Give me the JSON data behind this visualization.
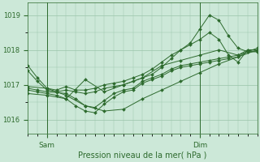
{
  "bg_color": "#cce8d8",
  "grid_color": "#99c4aa",
  "line_color": "#2d6a2d",
  "marker_color": "#2d6a2d",
  "title": "Pression niveau de la mer( hPa )",
  "ylim": [
    1015.6,
    1019.35
  ],
  "yticks": [
    1016,
    1017,
    1018,
    1019
  ],
  "series": [
    {
      "x": [
        0,
        1,
        2,
        3,
        4,
        5,
        6,
        7,
        8,
        9,
        10,
        11,
        12,
        13,
        14,
        15,
        16,
        17,
        18,
        19,
        20,
        21,
        22,
        23,
        24
      ],
      "y": [
        1016.9,
        1016.85,
        1016.8,
        1016.78,
        1016.75,
        1016.6,
        1016.4,
        1016.35,
        1016.55,
        1016.75,
        1016.85,
        1016.9,
        1017.1,
        1017.2,
        1017.3,
        1017.45,
        1017.55,
        1017.6,
        1017.65,
        1017.7,
        1017.75,
        1017.8,
        1017.85,
        1018.0,
        1018.0
      ]
    },
    {
      "x": [
        0,
        1,
        2,
        3,
        4,
        5,
        6,
        7,
        8,
        9,
        10,
        11,
        12,
        13,
        14,
        15,
        16,
        17,
        18,
        19,
        20,
        21,
        22,
        23,
        24
      ],
      "y": [
        1016.85,
        1016.8,
        1016.75,
        1016.7,
        1016.6,
        1016.4,
        1016.25,
        1016.2,
        1016.45,
        1016.65,
        1016.8,
        1016.85,
        1017.05,
        1017.15,
        1017.25,
        1017.4,
        1017.5,
        1017.55,
        1017.6,
        1017.65,
        1017.7,
        1017.75,
        1017.8,
        1017.95,
        1017.95
      ]
    },
    {
      "x": [
        0,
        2,
        4,
        6,
        8,
        10,
        12,
        14,
        16,
        18,
        20,
        22,
        24
      ],
      "y": [
        1016.75,
        1016.7,
        1016.6,
        1017.15,
        1016.8,
        1017.0,
        1017.2,
        1017.55,
        1017.7,
        1017.85,
        1018.0,
        1017.85,
        1018.05
      ]
    },
    {
      "x": [
        0,
        2,
        4,
        6,
        8,
        10,
        12,
        14,
        16,
        18,
        20,
        22,
        24
      ],
      "y": [
        1016.95,
        1016.9,
        1016.7,
        1016.4,
        1016.25,
        1016.3,
        1016.6,
        1016.85,
        1017.1,
        1017.35,
        1017.6,
        1017.8,
        1018.0
      ]
    },
    {
      "x": [
        0,
        1,
        2,
        3,
        4,
        5,
        6,
        7,
        8,
        9,
        10,
        11,
        12,
        13,
        14,
        15,
        16,
        17,
        18,
        19,
        20,
        21,
        22,
        23,
        24
      ],
      "y": [
        1017.55,
        1017.2,
        1016.9,
        1016.85,
        1016.95,
        1016.85,
        1016.85,
        1016.9,
        1017.0,
        1017.05,
        1017.1,
        1017.2,
        1017.3,
        1017.45,
        1017.65,
        1017.85,
        1018.0,
        1018.2,
        1018.6,
        1019.0,
        1018.85,
        1018.4,
        1018.05,
        1017.95,
        1017.95
      ]
    },
    {
      "x": [
        0,
        1,
        2,
        3,
        4,
        5,
        6,
        7,
        8,
        9,
        10,
        11,
        12,
        13,
        14,
        15,
        16,
        17,
        18,
        19,
        20,
        21,
        22,
        23,
        24
      ],
      "y": [
        1017.4,
        1017.1,
        1016.85,
        1016.8,
        1016.85,
        1016.8,
        1016.75,
        1016.8,
        1016.9,
        1016.95,
        1017.0,
        1017.1,
        1017.2,
        1017.3,
        1017.5,
        1017.75,
        1018.0,
        1018.15,
        1018.3,
        1018.5,
        1018.3,
        1017.85,
        1017.65,
        1018.0,
        1018.0
      ]
    }
  ],
  "sam_x": 2,
  "dim_x": 18,
  "xlim": [
    0,
    24
  ],
  "xtick_positions": [
    2,
    18
  ],
  "xtick_labels": [
    "Sam",
    "Dim"
  ]
}
